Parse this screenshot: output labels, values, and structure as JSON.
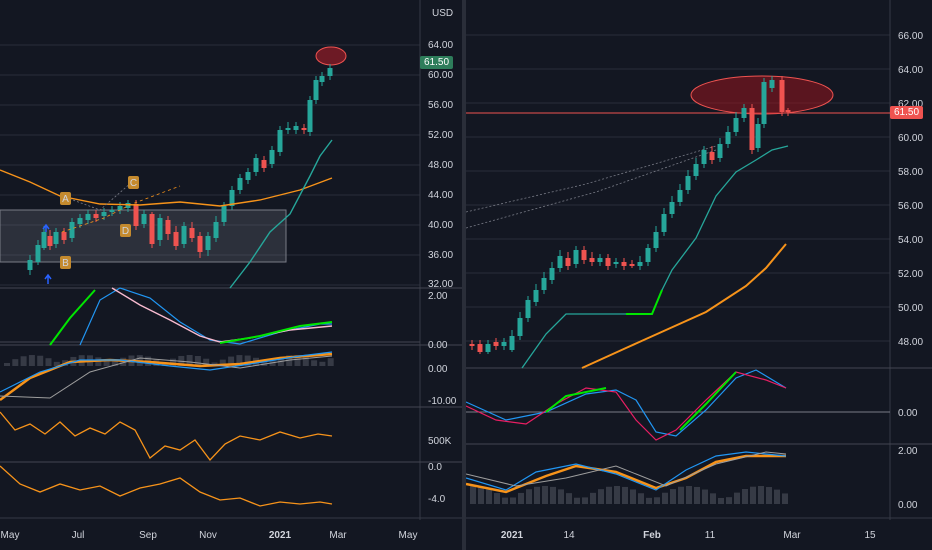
{
  "left": {
    "currency": "USD",
    "price_badge": "61.50",
    "price_ticks": [
      "64.00",
      "60.00",
      "56.00",
      "52.00",
      "48.00",
      "44.00",
      "40.00",
      "36.00",
      "32.00"
    ],
    "ind1_ticks": [
      "2.00",
      "0.00"
    ],
    "ind2_ticks": [
      "0.00",
      "-10.00"
    ],
    "ind3_ticks": [
      "500K"
    ],
    "ind4_ticks": [
      "0.0",
      "-4.0"
    ],
    "time_ticks": [
      "May",
      "Jul",
      "Sep",
      "Nov",
      "2021",
      "Mar",
      "May"
    ],
    "pattern_labels": [
      "A",
      "B",
      "C",
      "D"
    ]
  },
  "right": {
    "price_badge": "61.50",
    "price_ticks": [
      "66.00",
      "64.00",
      "62.00",
      "60.00",
      "58.00",
      "56.00",
      "54.00",
      "52.00",
      "50.00",
      "48.00"
    ],
    "ind1_ticks": [
      "0.00"
    ],
    "ind2_ticks": [
      "2.00",
      "0.00"
    ],
    "time_ticks": [
      "2021",
      "14",
      "Feb",
      "11",
      "Mar",
      "15"
    ]
  },
  "colors": {
    "background": "#131722",
    "up": "#26a69a",
    "down": "#ef5350",
    "accent_green": "#00e600",
    "orange": "#f7931a",
    "grid": "#2a2e39"
  }
}
